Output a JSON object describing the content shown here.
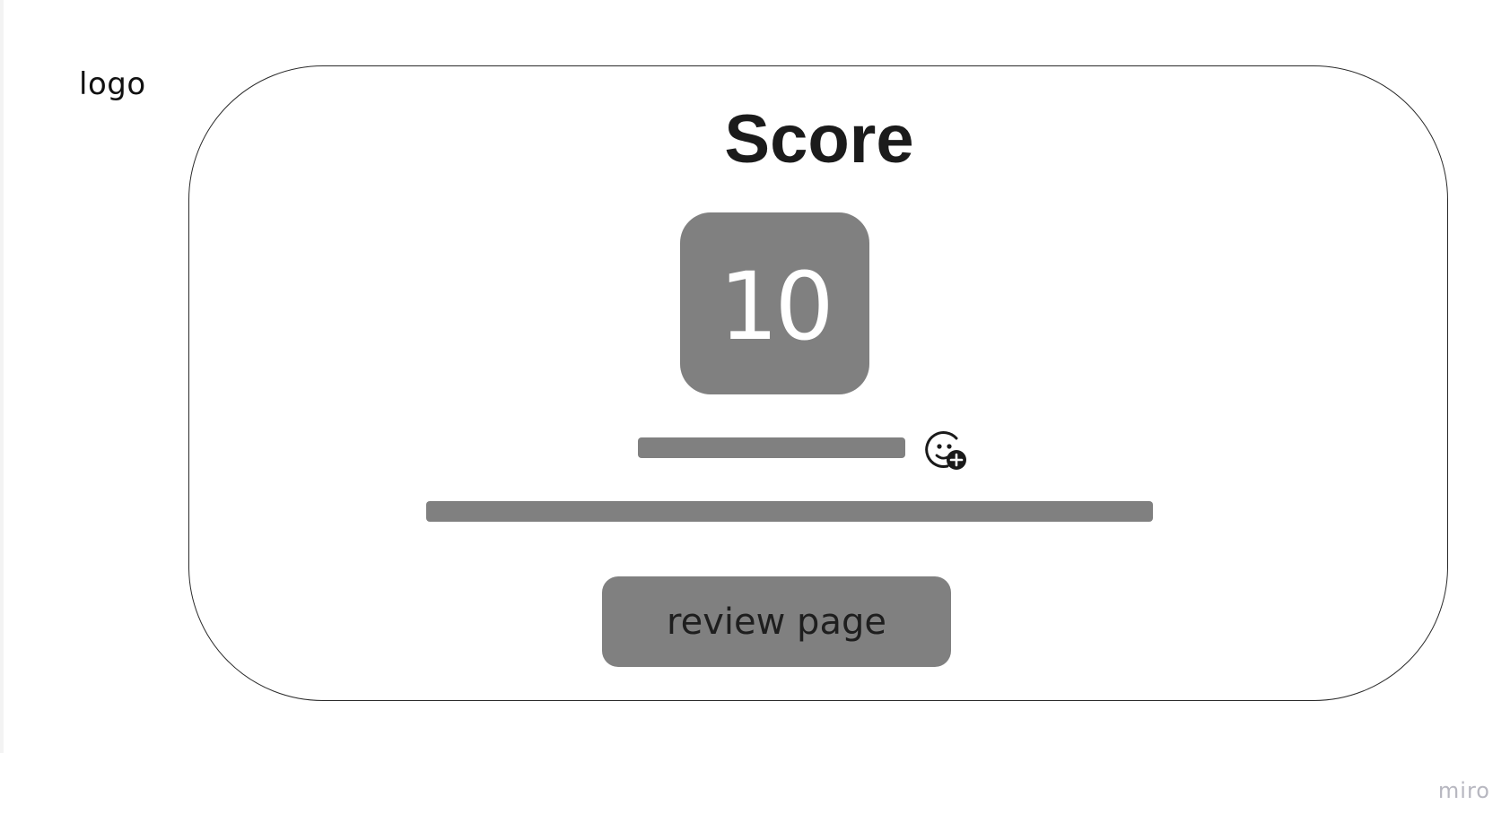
{
  "header": {
    "logo_text": "logo"
  },
  "card": {
    "title": "Score",
    "score_value": "10",
    "button_label": "review page"
  },
  "icons": {
    "reaction": "add-reaction-icon"
  },
  "colors": {
    "placeholder_gray": "#808080",
    "border": "#2a2a2a",
    "text": "#1b1b1b",
    "watermark": "#b7b7c0"
  },
  "watermark": {
    "text": "miro"
  }
}
